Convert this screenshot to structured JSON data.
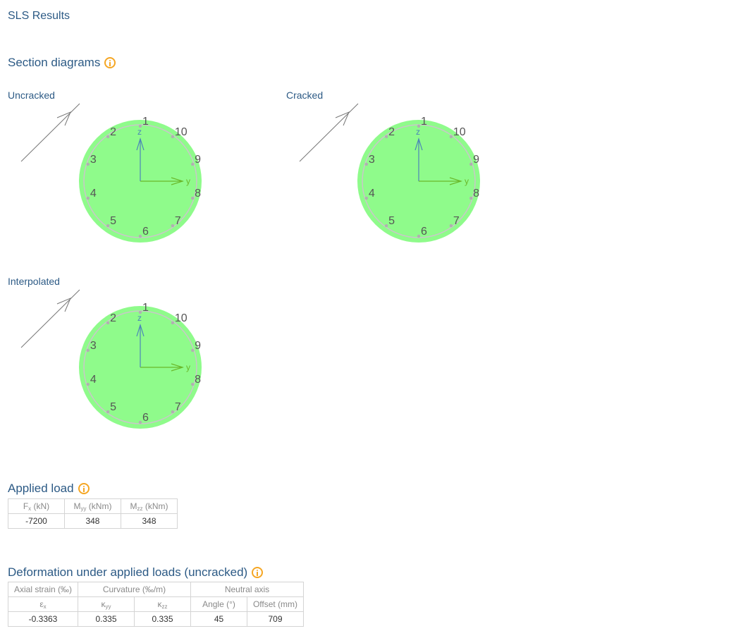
{
  "page": {
    "title": "SLS Results"
  },
  "section_diagrams": {
    "heading": "Section diagrams",
    "info_icon": "info-icon",
    "diagrams": [
      {
        "label": "Uncracked",
        "fill": "#8ffb8b",
        "bar_labels": [
          "1",
          "2",
          "3",
          "4",
          "5",
          "6",
          "7",
          "8",
          "9",
          "10"
        ],
        "axis_y": "y",
        "axis_z": "z"
      },
      {
        "label": "Cracked",
        "fill": "#8ffb8b",
        "bar_labels": [
          "1",
          "2",
          "3",
          "4",
          "5",
          "6",
          "7",
          "8",
          "9",
          "10"
        ],
        "axis_y": "y",
        "axis_z": "z"
      },
      {
        "label": "Interpolated",
        "fill": "#8ffb8b",
        "bar_labels": [
          "1",
          "2",
          "3",
          "4",
          "5",
          "6",
          "7",
          "8",
          "9",
          "10"
        ],
        "axis_y": "y",
        "axis_z": "z"
      }
    ]
  },
  "applied_load": {
    "heading": "Applied load",
    "headers": [
      {
        "main": "F",
        "sub": "x",
        "unit": " (kN)"
      },
      {
        "main": "M",
        "sub": "yy",
        "unit": " (kNm)"
      },
      {
        "main": "M",
        "sub": "zz",
        "unit": " (kNm)"
      }
    ],
    "values": [
      "-7200",
      "348",
      "348"
    ]
  },
  "deformation": {
    "heading": "Deformation under applied loads (uncracked)",
    "group_headers": [
      "Axial strain (‰)",
      "Curvature (‰/m)",
      "Neutral axis"
    ],
    "sub_headers": [
      {
        "main": "ε",
        "sub": "x"
      },
      {
        "main": "κ",
        "sub": "yy"
      },
      {
        "main": "κ",
        "sub": "zz"
      },
      {
        "main": "Angle (°)",
        "sub": ""
      },
      {
        "main": "Offset (mm)",
        "sub": ""
      }
    ],
    "values": [
      "-0.3363",
      "0.335",
      "0.335",
      "45",
      "709"
    ]
  },
  "colors": {
    "heading": "#2c5a85",
    "info_accent": "#f5a623",
    "section_fill": "#8ffb8b",
    "z_axis": "#4a86b8",
    "y_axis": "#6ab82a",
    "rebar": "#b0b0b0",
    "moment_arrow": "#777777"
  }
}
